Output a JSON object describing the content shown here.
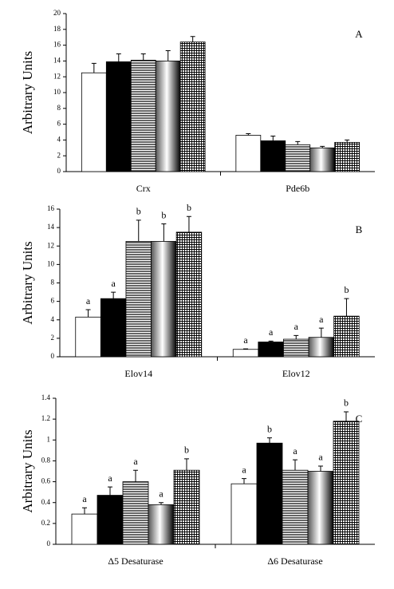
{
  "chart_data": [
    {
      "type": "bar",
      "label": "A",
      "ylabel": "Arbitrary Units",
      "categories": [
        "Crx",
        "Pde6b"
      ],
      "ylim": [
        0,
        20
      ],
      "yticks": [
        0,
        2,
        4,
        6,
        8,
        10,
        12,
        14,
        16,
        18,
        20
      ],
      "series": [
        {
          "fill": "white",
          "values": [
            12.5,
            4.6
          ],
          "errors": [
            1.2,
            0.2
          ]
        },
        {
          "fill": "black",
          "values": [
            13.9,
            3.9
          ],
          "errors": [
            1.0,
            0.6
          ]
        },
        {
          "fill": "horizontal-lines",
          "values": [
            14.1,
            3.4
          ],
          "errors": [
            0.8,
            0.4
          ]
        },
        {
          "fill": "gradient",
          "values": [
            14.0,
            3.0
          ],
          "errors": [
            1.3,
            0.2
          ]
        },
        {
          "fill": "crosshatch",
          "values": [
            16.4,
            3.7
          ],
          "errors": [
            0.7,
            0.3
          ]
        }
      ]
    },
    {
      "type": "bar",
      "label": "B",
      "ylabel": "Arbitrary Units",
      "categories": [
        "Elov14",
        "Elov12"
      ],
      "ylim": [
        0,
        16
      ],
      "yticks": [
        0,
        2,
        4,
        6,
        8,
        10,
        12,
        14,
        16
      ],
      "series": [
        {
          "fill": "white",
          "values": [
            4.3,
            0.8
          ],
          "errors": [
            0.8,
            0.05
          ],
          "letters": [
            "a",
            "a"
          ]
        },
        {
          "fill": "black",
          "values": [
            6.3,
            1.6
          ],
          "errors": [
            0.7,
            0.1
          ],
          "letters": [
            "a",
            "a"
          ]
        },
        {
          "fill": "horizontal-lines",
          "values": [
            12.5,
            1.9
          ],
          "errors": [
            2.3,
            0.4
          ],
          "letters": [
            "b",
            "a"
          ]
        },
        {
          "fill": "gradient",
          "values": [
            12.5,
            2.1
          ],
          "errors": [
            1.9,
            1.0
          ],
          "letters": [
            "b",
            "a"
          ]
        },
        {
          "fill": "crosshatch",
          "values": [
            13.5,
            4.4
          ],
          "errors": [
            1.7,
            1.9
          ],
          "letters": [
            "b",
            "b"
          ]
        }
      ]
    },
    {
      "type": "bar",
      "label": "C",
      "ylabel": "Arbitrary Units",
      "categories": [
        "Δ5 Desaturase",
        "Δ6 Desaturase"
      ],
      "ylim": [
        0,
        1.4
      ],
      "yticks": [
        0,
        0.2,
        0.4,
        0.6,
        0.8,
        1,
        1.2,
        1.4
      ],
      "series": [
        {
          "fill": "white",
          "values": [
            0.29,
            0.58
          ],
          "errors": [
            0.06,
            0.05
          ],
          "letters": [
            "a",
            "a"
          ]
        },
        {
          "fill": "black",
          "values": [
            0.47,
            0.97
          ],
          "errors": [
            0.08,
            0.05
          ],
          "letters": [
            "a",
            "b"
          ]
        },
        {
          "fill": "horizontal-lines",
          "values": [
            0.6,
            0.71
          ],
          "errors": [
            0.11,
            0.1
          ],
          "letters": [
            "a",
            "a"
          ]
        },
        {
          "fill": "gradient",
          "values": [
            0.38,
            0.7
          ],
          "errors": [
            0.02,
            0.05
          ],
          "letters": [
            "a",
            "a"
          ]
        },
        {
          "fill": "crosshatch",
          "values": [
            0.71,
            1.18
          ],
          "errors": [
            0.11,
            0.09
          ],
          "letters": [
            "b",
            "b"
          ]
        }
      ]
    }
  ]
}
